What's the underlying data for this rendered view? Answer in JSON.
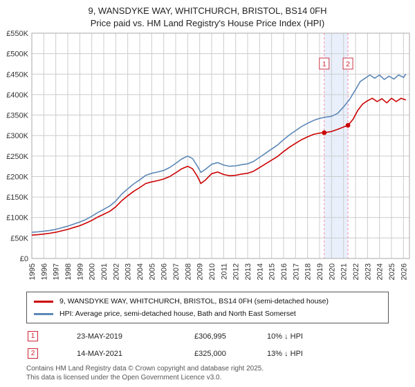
{
  "title": {
    "line1": "9, WANSDYKE WAY, WHITCHURCH, BRISTOL, BS14 0FH",
    "line2": "Price paid vs. HM Land Registry's House Price Index (HPI)"
  },
  "chart_data": {
    "type": "line",
    "xlim": [
      1995,
      2026.5
    ],
    "ylim": [
      0,
      550000
    ],
    "grid": true,
    "x_ticks": [
      1995,
      1996,
      1997,
      1998,
      1999,
      2000,
      2001,
      2002,
      2003,
      2004,
      2005,
      2006,
      2007,
      2008,
      2009,
      2010,
      2011,
      2012,
      2013,
      2014,
      2015,
      2016,
      2017,
      2018,
      2019,
      2020,
      2021,
      2022,
      2023,
      2024,
      2025,
      2026
    ],
    "y_ticks": [
      0,
      50000,
      100000,
      150000,
      200000,
      250000,
      300000,
      350000,
      400000,
      450000,
      500000,
      550000
    ],
    "y_tick_labels": [
      "£0",
      "£50K",
      "£100K",
      "£150K",
      "£200K",
      "£250K",
      "£300K",
      "£350K",
      "£400K",
      "£450K",
      "£500K",
      "£550K"
    ],
    "band": {
      "from": 2019.39,
      "to": 2021.37
    },
    "band_color": "#e9f0fb",
    "sale_line_color": "#f08aa4",
    "grid_color": "#cccccc",
    "border_color": "#aaaaaa",
    "series": [
      {
        "id": "price-paid",
        "name": "9, WANSDYKE WAY, WHITCHURCH, BRISTOL, BS14 0FH (semi-detached house)",
        "color": "#cc0000",
        "points": [
          [
            1995,
            57000
          ],
          [
            1995.5,
            58000
          ],
          [
            1996,
            59500
          ],
          [
            1996.5,
            61500
          ],
          [
            1997,
            64000
          ],
          [
            1997.5,
            67500
          ],
          [
            1998,
            71000
          ],
          [
            1998.5,
            75500
          ],
          [
            1999,
            80000
          ],
          [
            1999.5,
            86000
          ],
          [
            2000,
            93000
          ],
          [
            2000.5,
            101000
          ],
          [
            2001,
            108000
          ],
          [
            2001.5,
            115000
          ],
          [
            2002,
            126000
          ],
          [
            2002.5,
            141000
          ],
          [
            2003,
            153000
          ],
          [
            2003.5,
            164000
          ],
          [
            2004,
            173000
          ],
          [
            2004.5,
            183000
          ],
          [
            2005,
            187000
          ],
          [
            2005.5,
            190000
          ],
          [
            2006,
            194000
          ],
          [
            2006.5,
            200000
          ],
          [
            2007,
            209000
          ],
          [
            2007.5,
            219000
          ],
          [
            2008,
            225000
          ],
          [
            2008.4,
            219000
          ],
          [
            2008.8,
            201000
          ],
          [
            2009.1,
            183000
          ],
          [
            2009.5,
            192000
          ],
          [
            2010,
            207000
          ],
          [
            2010.5,
            211000
          ],
          [
            2011,
            205000
          ],
          [
            2011.5,
            202000
          ],
          [
            2012,
            203000
          ],
          [
            2012.5,
            206000
          ],
          [
            2013,
            208000
          ],
          [
            2013.5,
            213000
          ],
          [
            2014,
            222000
          ],
          [
            2014.5,
            231000
          ],
          [
            2015,
            240000
          ],
          [
            2015.5,
            249000
          ],
          [
            2016,
            261000
          ],
          [
            2016.5,
            272000
          ],
          [
            2017,
            281000
          ],
          [
            2017.5,
            290000
          ],
          [
            2018,
            297000
          ],
          [
            2018.5,
            303000
          ],
          [
            2019,
            306000
          ],
          [
            2019.39,
            306995
          ],
          [
            2020,
            310000
          ],
          [
            2020.5,
            315000
          ],
          [
            2021,
            321000
          ],
          [
            2021.37,
            325000
          ],
          [
            2021.8,
            340000
          ],
          [
            2022.2,
            362000
          ],
          [
            2022.6,
            377000
          ],
          [
            2023,
            385000
          ],
          [
            2023.4,
            391000
          ],
          [
            2023.8,
            383000
          ],
          [
            2024.2,
            390000
          ],
          [
            2024.6,
            380000
          ],
          [
            2025,
            391000
          ],
          [
            2025.4,
            383000
          ],
          [
            2025.8,
            391000
          ],
          [
            2026.2,
            387000
          ]
        ]
      },
      {
        "id": "hpi",
        "name": "HPI: Average price, semi-detached house, Bath and North East Somerset",
        "color": "#5b87b7",
        "points": [
          [
            1995,
            64000
          ],
          [
            1995.5,
            65000
          ],
          [
            1996,
            66500
          ],
          [
            1996.5,
            68500
          ],
          [
            1997,
            71000
          ],
          [
            1997.5,
            75000
          ],
          [
            1998,
            79000
          ],
          [
            1998.5,
            84000
          ],
          [
            1999,
            89000
          ],
          [
            1999.5,
            95000
          ],
          [
            2000,
            103000
          ],
          [
            2000.5,
            112000
          ],
          [
            2001,
            120000
          ],
          [
            2001.5,
            128000
          ],
          [
            2002,
            140000
          ],
          [
            2002.5,
            157000
          ],
          [
            2003,
            170000
          ],
          [
            2003.5,
            182000
          ],
          [
            2004,
            192000
          ],
          [
            2004.5,
            203000
          ],
          [
            2005,
            208000
          ],
          [
            2005.5,
            211000
          ],
          [
            2006,
            215000
          ],
          [
            2006.5,
            222000
          ],
          [
            2007,
            232000
          ],
          [
            2007.5,
            243000
          ],
          [
            2008,
            250000
          ],
          [
            2008.4,
            244000
          ],
          [
            2008.8,
            226000
          ],
          [
            2009.1,
            210000
          ],
          [
            2009.5,
            218000
          ],
          [
            2010,
            230000
          ],
          [
            2010.5,
            234000
          ],
          [
            2011,
            228000
          ],
          [
            2011.5,
            225000
          ],
          [
            2012,
            226000
          ],
          [
            2012.5,
            229000
          ],
          [
            2013,
            231000
          ],
          [
            2013.5,
            237000
          ],
          [
            2014,
            247000
          ],
          [
            2014.5,
            257000
          ],
          [
            2015,
            267000
          ],
          [
            2015.5,
            277000
          ],
          [
            2016,
            290000
          ],
          [
            2016.5,
            302000
          ],
          [
            2017,
            312000
          ],
          [
            2017.5,
            322000
          ],
          [
            2018,
            330000
          ],
          [
            2018.5,
            337000
          ],
          [
            2019,
            342000
          ],
          [
            2019.5,
            345000
          ],
          [
            2020,
            347000
          ],
          [
            2020.5,
            354000
          ],
          [
            2021,
            370000
          ],
          [
            2021.5,
            388000
          ],
          [
            2022,
            412000
          ],
          [
            2022.4,
            432000
          ],
          [
            2022.8,
            440000
          ],
          [
            2023.2,
            448000
          ],
          [
            2023.6,
            440000
          ],
          [
            2024,
            448000
          ],
          [
            2024.4,
            437000
          ],
          [
            2024.8,
            445000
          ],
          [
            2025.2,
            438000
          ],
          [
            2025.6,
            448000
          ],
          [
            2026,
            442000
          ],
          [
            2026.2,
            450000
          ]
        ]
      }
    ],
    "markers": [
      {
        "label": "1",
        "x": 2019.39,
        "value": 306995
      },
      {
        "label": "2",
        "x": 2021.37,
        "value": 325000
      }
    ]
  },
  "transactions": [
    {
      "num": "1",
      "date": "23-MAY-2019",
      "price": "£306,995",
      "hpi": "10% ↓ HPI"
    },
    {
      "num": "2",
      "date": "14-MAY-2021",
      "price": "£325,000",
      "hpi": "13% ↓ HPI"
    }
  ],
  "footer": {
    "line1": "Contains HM Land Registry data © Crown copyright and database right 2025.",
    "line2": "This data is licensed under the Open Government Licence v3.0."
  }
}
